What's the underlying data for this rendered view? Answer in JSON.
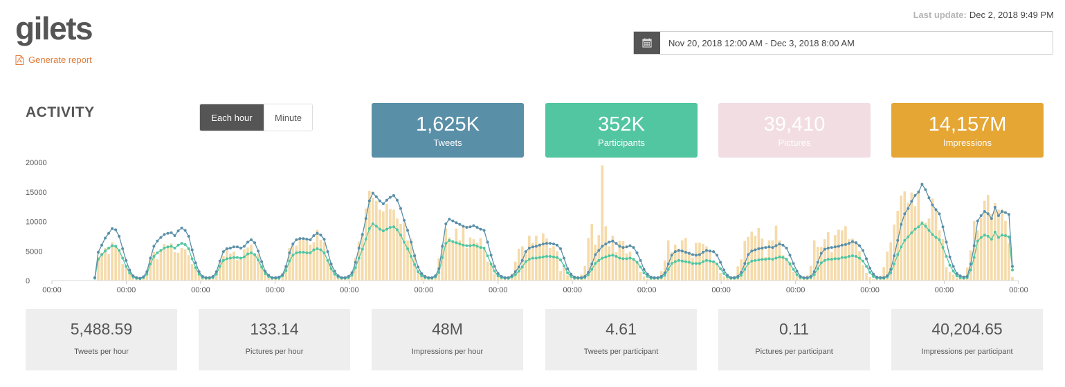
{
  "page": {
    "title": "gilets",
    "report_link": "Generate report",
    "last_update_label": "Last update:",
    "last_update_value": "Dec 2, 2018 9:49 PM",
    "date_range": "Nov 20, 2018 12:00 AM - Dec 3, 2018 8:00 AM"
  },
  "activity": {
    "title": "ACTIVITY",
    "toggle": [
      "Each hour",
      "Minute"
    ],
    "active_toggle": "Each hour"
  },
  "stats": [
    {
      "value": "1,625K",
      "label": "Tweets",
      "color": "#5a8fa8"
    },
    {
      "value": "352K",
      "label": "Participants",
      "color": "#52c6a0"
    },
    {
      "value": "39,410",
      "label": "Pictures",
      "color": "#f2dde3"
    },
    {
      "value": "14,157M",
      "label": "Impressions",
      "color": "#e5a634"
    }
  ],
  "metrics": [
    {
      "value": "5,488.59",
      "label": "Tweets per hour"
    },
    {
      "value": "133.14",
      "label": "Pictures per hour"
    },
    {
      "value": "48M",
      "label": "Impressions per hour"
    },
    {
      "value": "4.61",
      "label": "Tweets per participant"
    },
    {
      "value": "0.11",
      "label": "Pictures per participant"
    },
    {
      "value": "40,204.65",
      "label": "Impressions per participant"
    }
  ],
  "chart_data": {
    "type": "line",
    "x_tick_labels": [
      "00:00",
      "00:00",
      "00:00",
      "00:00",
      "00:00",
      "00:00",
      "00:00",
      "00:00",
      "00:00",
      "00:00",
      "00:00",
      "00:00",
      "00:00",
      "00:00"
    ],
    "y_ticks": [
      0,
      5000,
      10000,
      15000,
      20000
    ],
    "ylim": [
      0,
      20000
    ],
    "colors": {
      "tweets": "#5a8fa8",
      "participants": "#52c6a0",
      "pictures": "#f5dbab"
    },
    "series": [
      {
        "key": "tweets",
        "values": [
          500,
          4800,
          6000,
          7200,
          8000,
          8800,
          8600,
          7500,
          5400,
          3400,
          1800,
          800,
          500,
          400,
          650,
          1500,
          3800,
          5800,
          6700,
          7300,
          7800,
          8000,
          8100,
          7600,
          8400,
          8900,
          8500,
          7500,
          5200,
          3000,
          1500,
          700,
          500,
          500,
          700,
          1500,
          3300,
          4900,
          5400,
          5500,
          5700,
          5700,
          5500,
          5800,
          6500,
          6900,
          6400,
          5000,
          3200,
          1600,
          900,
          500,
          500,
          600,
          1000,
          2400,
          4700,
          6200,
          6900,
          7100,
          7100,
          7000,
          6900,
          7600,
          8000,
          7700,
          7000,
          4900,
          2800,
          1600,
          800,
          500,
          500,
          700,
          1300,
          3100,
          5500,
          7800,
          10500,
          13500,
          14800,
          14200,
          13500,
          13000,
          13600,
          14100,
          14400,
          13600,
          12200,
          10200,
          8500,
          6500,
          4200,
          2300,
          1200,
          700,
          500,
          500,
          800,
          2000,
          5800,
          9600,
          10400,
          10100,
          9800,
          9500,
          9200,
          9000,
          9100,
          9300,
          9000,
          8700,
          8500,
          6500,
          4300,
          2400,
          1200,
          700,
          500,
          500,
          800,
          1500,
          2300,
          3400,
          4900,
          5500,
          5700,
          5800,
          6000,
          6200,
          6300,
          6300,
          6200,
          6000,
          5400,
          3800,
          2000,
          1100,
          600,
          500,
          500,
          700,
          1400,
          2800,
          4400,
          5100,
          5800,
          6200,
          6500,
          6700,
          6300,
          5800,
          5600,
          5700,
          5900,
          5600,
          4700,
          3400,
          1900,
          1100,
          600,
          500,
          500,
          700,
          1300,
          2800,
          4300,
          4900,
          5100,
          5000,
          4800,
          4600,
          4400,
          4300,
          4400,
          4800,
          5100,
          5000,
          4900,
          4300,
          3100,
          1800,
          900,
          500,
          500,
          700,
          1400,
          2900,
          4400,
          5000,
          5200,
          5400,
          5500,
          5600,
          5700,
          5600,
          5900,
          6200,
          6000,
          5500,
          4300,
          2900,
          1600,
          700,
          500,
          500,
          700,
          1500,
          3100,
          4600,
          5300,
          5500,
          5600,
          5700,
          5800,
          6000,
          6100,
          6300,
          6600,
          6400,
          5900,
          5100,
          3700,
          2100,
          1100,
          600,
          500,
          500,
          800,
          1900,
          4200,
          6800,
          9500,
          11300,
          12200,
          13400,
          14400,
          15000,
          16300,
          15400,
          14000,
          12800,
          12000,
          11300,
          9100,
          6500,
          4000,
          2400,
          1200,
          800,
          600,
          700,
          2800,
          5900,
          10100,
          11000,
          11700,
          11300,
          10500,
          12400,
          11000,
          11700,
          11500,
          11200,
          2400
        ]
      },
      {
        "key": "participants",
        "values": [
          400,
          3600,
          4400,
          5000,
          5500,
          5900,
          5800,
          5100,
          3800,
          2400,
          1300,
          600,
          400,
          300,
          500,
          1100,
          2800,
          4100,
          4700,
          5100,
          5500,
          5700,
          5800,
          5500,
          6000,
          6300,
          6100,
          5400,
          3700,
          2200,
          1100,
          500,
          400,
          400,
          500,
          1100,
          2400,
          3400,
          3700,
          3800,
          3900,
          3900,
          3800,
          4000,
          4500,
          4700,
          4400,
          3500,
          2300,
          1200,
          700,
          400,
          400,
          400,
          800,
          1700,
          3300,
          4300,
          4700,
          4800,
          4800,
          4700,
          4700,
          5200,
          5400,
          5200,
          4700,
          3400,
          2000,
          1100,
          600,
          400,
          400,
          500,
          900,
          2200,
          3800,
          5300,
          7000,
          8800,
          9600,
          9200,
          8700,
          8400,
          8700,
          9000,
          9100,
          8600,
          7700,
          6500,
          5400,
          4100,
          2700,
          1500,
          800,
          500,
          400,
          400,
          600,
          1400,
          3900,
          6300,
          6800,
          6600,
          6400,
          6200,
          6000,
          5900,
          5900,
          6000,
          5800,
          5600,
          5500,
          4200,
          2800,
          1600,
          800,
          500,
          400,
          400,
          600,
          1000,
          1600,
          2300,
          3200,
          3600,
          3800,
          3800,
          3900,
          4000,
          4100,
          4100,
          4000,
          3900,
          3500,
          2500,
          1300,
          700,
          400,
          400,
          400,
          500,
          1000,
          1900,
          2900,
          3400,
          3800,
          4000,
          4200,
          4300,
          4100,
          3800,
          3700,
          3700,
          3800,
          3600,
          3100,
          2300,
          1300,
          700,
          400,
          400,
          400,
          500,
          900,
          1900,
          2900,
          3200,
          3400,
          3300,
          3200,
          3100,
          2900,
          2900,
          2900,
          3200,
          3400,
          3300,
          3200,
          2800,
          2000,
          1200,
          600,
          400,
          400,
          500,
          900,
          1900,
          2900,
          3300,
          3400,
          3500,
          3600,
          3600,
          3700,
          3600,
          3800,
          4000,
          3900,
          3600,
          2800,
          1900,
          1000,
          500,
          400,
          400,
          500,
          1000,
          2000,
          3000,
          3400,
          3600,
          3600,
          3700,
          3700,
          3900,
          3900,
          4100,
          4200,
          4100,
          3800,
          3300,
          2400,
          1400,
          700,
          400,
          400,
          400,
          600,
          1300,
          2800,
          4400,
          5700,
          6800,
          7400,
          8100,
          8700,
          9100,
          9700,
          9200,
          8500,
          7800,
          7300,
          6900,
          5600,
          4100,
          2600,
          1600,
          800,
          500,
          400,
          500,
          1800,
          3900,
          6700,
          7300,
          7700,
          7500,
          7000,
          8200,
          7300,
          7700,
          7600,
          7400,
          1800
        ]
      },
      {
        "key": "pictures",
        "values": [
          0,
          4000,
          4700,
          5500,
          4500,
          6500,
          6000,
          5300,
          2800,
          2500,
          1200,
          500,
          300,
          200,
          400,
          1700,
          4000,
          4900,
          3600,
          5200,
          6200,
          5900,
          6300,
          4800,
          4700,
          5500,
          5300,
          4300,
          2800,
          2300,
          1100,
          500,
          300,
          300,
          600,
          1500,
          3500,
          4200,
          5600,
          4600,
          4900,
          3500,
          4000,
          5300,
          5600,
          6100,
          4400,
          4600,
          2600,
          1100,
          800,
          300,
          300,
          400,
          1200,
          2300,
          5500,
          6400,
          5900,
          6900,
          6900,
          6700,
          6100,
          6500,
          8600,
          6900,
          6500,
          3600,
          3100,
          1100,
          600,
          300,
          300,
          500,
          1600,
          3900,
          6600,
          8000,
          12200,
          15200,
          14000,
          13500,
          12000,
          11700,
          13000,
          12100,
          12000,
          10500,
          9600,
          9800,
          6800,
          7100,
          4600,
          1800,
          1100,
          400,
          300,
          300,
          600,
          3800,
          6100,
          8800,
          7300,
          6600,
          8800,
          6800,
          9200,
          5500,
          7300,
          7000,
          6400,
          7200,
          5300,
          3200,
          2600,
          1200,
          800,
          300,
          300,
          600,
          1200,
          3200,
          5400,
          5800,
          4800,
          7600,
          6400,
          7600,
          6300,
          8000,
          7100,
          5500,
          5800,
          5000,
          1600,
          2200,
          900,
          500,
          300,
          400,
          1000,
          2500,
          7200,
          9600,
          6100,
          7700,
          19500,
          9200,
          5800,
          7600,
          4800,
          6700,
          6700,
          4600,
          4900,
          3800,
          2900,
          1500,
          700,
          300,
          300,
          300,
          700,
          1600,
          3400,
          6800,
          4800,
          6100,
          5400,
          6800,
          7200,
          4900,
          3900,
          6400,
          6400,
          6200,
          5800,
          4900,
          3300,
          2600,
          1300,
          700,
          300,
          300,
          800,
          2400,
          3600,
          6700,
          7400,
          8300,
          7600,
          8900,
          7100,
          4000,
          6800,
          6800,
          9300,
          6800,
          4300,
          3900,
          3200,
          1500,
          700,
          300,
          300,
          900,
          2500,
          6800,
          5700,
          5700,
          7000,
          8200,
          4800,
          7700,
          8600,
          8500,
          9200,
          7000,
          7100,
          6700,
          5000,
          2600,
          1300,
          600,
          300,
          300,
          800,
          2300,
          4900,
          6500,
          9500,
          11800,
          14400,
          15100,
          13200,
          14900,
          12600,
          14800,
          10100,
          9800,
          10500,
          13900,
          12100,
          8500,
          7000,
          2300,
          1500,
          1000,
          500,
          400,
          300,
          2200,
          5100,
          10100,
          8500,
          10600,
          13500,
          14500,
          11300,
          13100,
          12000,
          12100,
          10100,
          6300,
          600
        ]
      }
    ]
  }
}
